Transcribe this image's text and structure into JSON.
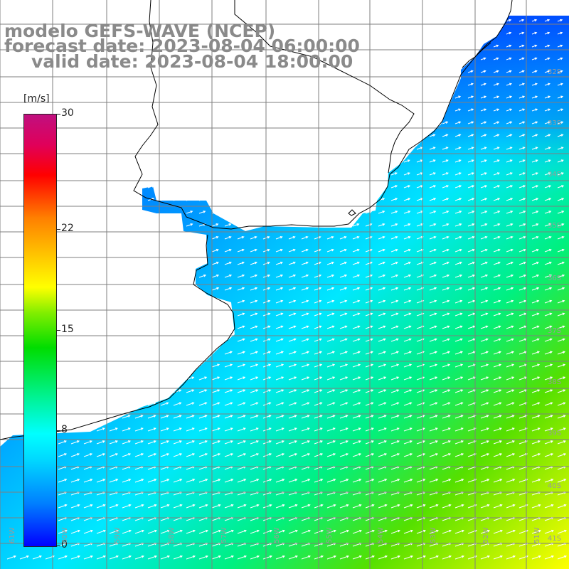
{
  "title": {
    "line1": "modelo GEFS-WAVE (NCEP)",
    "line2": "forecast date: 2023-08-04 06:00:00",
    "line3": "valid date: 2023-08-04 18:00:00"
  },
  "colorbar": {
    "unit": "[m/s]",
    "ticks": [
      {
        "label": "30",
        "value": 30
      },
      {
        "label": "22",
        "value": 22
      },
      {
        "label": "15",
        "value": 15
      },
      {
        "label": "8",
        "value": 8
      },
      {
        "label": "0",
        "value": 0
      }
    ],
    "min": 0,
    "max": 30
  },
  "lat_labels": [
    "32S",
    "33S",
    "34S",
    "35S",
    "36S",
    "37S",
    "38S",
    "39S",
    "40S",
    "41S"
  ],
  "lon_labels": [
    "61W",
    "60W",
    "59W",
    "58W",
    "57W",
    "56W",
    "55W",
    "54W",
    "53W",
    "52W",
    "51W"
  ],
  "colors": {
    "land": "#ffffff",
    "grid": "#7f7f7f",
    "coastline": "#000000",
    "arrows": "#ffffff",
    "title": "#8a8a8a"
  }
}
